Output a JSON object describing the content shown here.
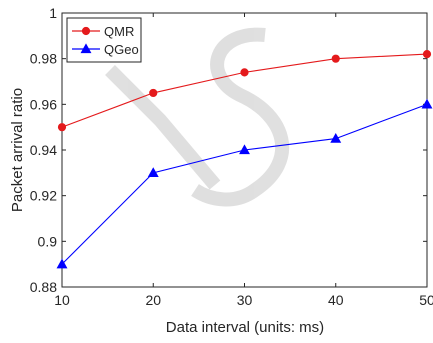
{
  "chart_data": {
    "type": "line",
    "title": "",
    "xlabel": "Data interval (units: ms)",
    "ylabel": "Packet arrival ratio",
    "x": [
      10,
      20,
      30,
      40,
      50
    ],
    "xlim": [
      10,
      50
    ],
    "ylim": [
      0.88,
      1.0
    ],
    "xticks": [
      10,
      20,
      30,
      40,
      50
    ],
    "yticks": [
      0.88,
      0.9,
      0.92,
      0.94,
      0.96,
      0.98,
      1.0
    ],
    "xtick_labels": [
      "10",
      "20",
      "30",
      "40",
      "50"
    ],
    "ytick_labels": [
      "0.88",
      "0.9",
      "0.92",
      "0.94",
      "0.96",
      "0.98",
      "1"
    ],
    "grid": false,
    "legend_position": "top-left",
    "series": [
      {
        "name": "QMR",
        "color": "#e41a1c",
        "marker": "circle",
        "values": [
          0.95,
          0.965,
          0.974,
          0.98,
          0.982
        ]
      },
      {
        "name": "QGeo",
        "color": "#0000ff",
        "marker": "triangle",
        "values": [
          0.89,
          0.93,
          0.94,
          0.945,
          0.96
        ]
      }
    ]
  }
}
